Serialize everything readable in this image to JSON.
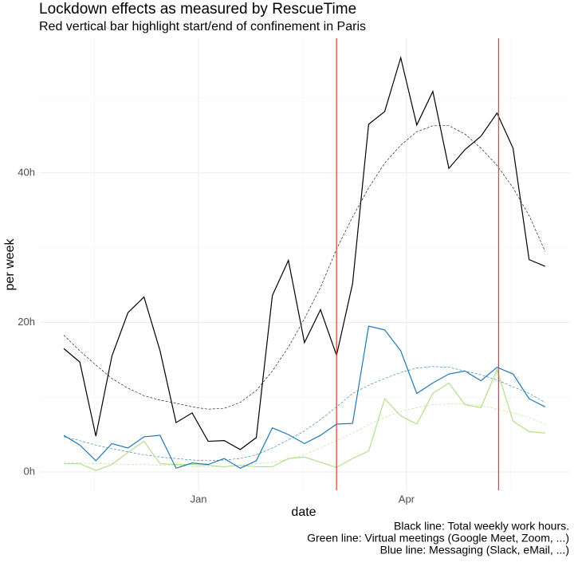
{
  "chart_data": {
    "type": "line",
    "title": "Lockdown effects as measured by RescueTime",
    "subtitle": "Red vertical bar highlight start/end of confinement in Paris",
    "x_label": "date",
    "y_label": "per week",
    "caption": [
      "Black line: Total weekly work hours.",
      "Green line: Virtual meetings (Google Meet, Zoom, ...)",
      "Blue line: Messaging (Slack, eMail, ...)"
    ],
    "x": [
      0,
      1,
      2,
      3,
      4,
      5,
      6,
      7,
      8,
      9,
      10,
      11,
      12,
      13,
      14,
      15,
      16,
      17,
      18,
      19,
      20,
      21,
      22,
      23,
      24,
      25,
      26,
      27,
      28,
      29,
      30
    ],
    "xlim": [
      -1.49,
      31.55
    ],
    "xticks": [
      {
        "value": 8.4,
        "label": "Jan"
      },
      {
        "value": 21.36,
        "label": "Apr"
      }
    ],
    "xminor": [
      1.92,
      14.88,
      27.84
    ],
    "ylim": [
      -2.45,
      58
    ],
    "yticks": [
      {
        "value": 0,
        "label": "0h"
      },
      {
        "value": 20,
        "label": "20h"
      },
      {
        "value": 40,
        "label": "40h"
      }
    ],
    "yminor": [
      10,
      30,
      50
    ],
    "grid": true,
    "vlines": [
      17,
      27.1
    ],
    "vline_color": "#e8443a",
    "series": [
      {
        "color": "#000000",
        "dashed": true,
        "values": [
          18.3,
          16.2,
          14.3,
          12.5,
          11.2,
          10.2,
          9.6,
          9.2,
          8.7,
          8.4,
          8.5,
          9.3,
          10.9,
          13.5,
          16.7,
          20.5,
          24.7,
          29.8,
          34.1,
          38,
          41.3,
          43.7,
          45.5,
          46.3,
          46.3,
          45.2,
          43.3,
          41,
          38,
          34.3,
          29.5
        ]
      },
      {
        "color": "#b2df8a",
        "dashed": true,
        "values": [
          1.3,
          1.2,
          1.1,
          1.1,
          1.0,
          1.0,
          0.9,
          0.9,
          0.7,
          0.7,
          0.7,
          0.9,
          1.1,
          1.3,
          1.7,
          2.3,
          3.2,
          4.2,
          5.2,
          6.3,
          7.3,
          8.1,
          8.6,
          9.0,
          9.1,
          9.1,
          8.9,
          8.4,
          7.9,
          7.3,
          6.4
        ]
      },
      {
        "color": "#1f78b4",
        "dashed": true,
        "values": [
          4.7,
          4.2,
          3.6,
          3.1,
          2.7,
          2.3,
          2.0,
          1.8,
          1.6,
          1.5,
          1.6,
          1.8,
          2.3,
          3.2,
          4.3,
          5.5,
          7.0,
          8.7,
          10.5,
          11.6,
          12.5,
          13.3,
          13.9,
          14.1,
          14.0,
          13.5,
          13,
          12.3,
          11.4,
          10.5,
          9.3
        ]
      },
      {
        "color": "#000000",
        "dashed": false,
        "values": [
          16.5,
          14.7,
          4.8,
          15.5,
          21.3,
          23.4,
          16.2,
          6.6,
          7.9,
          4.1,
          4.2,
          3.0,
          4.6,
          23.6,
          28.3,
          17.3,
          21.7,
          15.6,
          25.2,
          46.5,
          48.2,
          55.4,
          46.4,
          50.9,
          40.6,
          43.1,
          44.9,
          48.0,
          43.3,
          28.4,
          27.5
        ]
      },
      {
        "color": "#b2df8a",
        "dashed": false,
        "values": [
          1.1,
          1.1,
          0.2,
          1.0,
          2.6,
          4.1,
          1.1,
          1.0,
          1.0,
          0.9,
          0.7,
          0.9,
          0.7,
          0.7,
          1.8,
          2.0,
          1.3,
          0.6,
          1.8,
          2.8,
          9.8,
          7.5,
          6.4,
          10.5,
          11.9,
          9.0,
          8.6,
          13.7,
          6.8,
          5.4,
          5.2
        ]
      },
      {
        "color": "#1f78b4",
        "dashed": false,
        "values": [
          4.9,
          3.6,
          1.5,
          3.8,
          3.2,
          4.7,
          4.9,
          0.5,
          1.2,
          1.0,
          1.8,
          0.5,
          1.5,
          5.9,
          5.0,
          3.8,
          4.9,
          6.4,
          6.5,
          19.5,
          19.0,
          16.2,
          10.5,
          11.9,
          13.1,
          13.5,
          12.2,
          14.0,
          13.1,
          9.8,
          8.7
        ]
      }
    ]
  }
}
